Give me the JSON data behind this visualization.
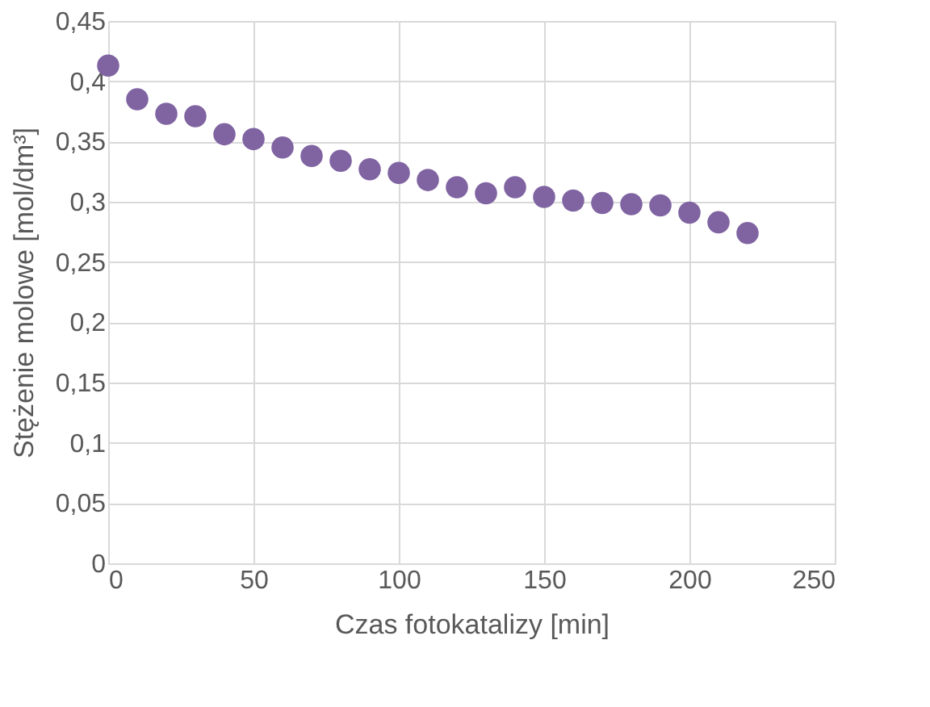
{
  "chart_data": {
    "type": "scatter",
    "xlabel": "Czas fotokatalizy [min]",
    "ylabel": "Stężenie molowe [mol/dm³]",
    "x": [
      0,
      10,
      20,
      30,
      40,
      50,
      60,
      70,
      80,
      90,
      100,
      110,
      120,
      130,
      140,
      150,
      160,
      170,
      180,
      190,
      200,
      210,
      220
    ],
    "series": [
      {
        "color": "#8064a2",
        "values": [
          0.413,
          0.385,
          0.373,
          0.371,
          0.356,
          0.352,
          0.345,
          0.338,
          0.334,
          0.327,
          0.324,
          0.318,
          0.312,
          0.307,
          0.312,
          0.304,
          0.301,
          0.299,
          0.298,
          0.297,
          0.291,
          0.283,
          0.274
        ]
      }
    ],
    "xlim": [
      0,
      250
    ],
    "xticks": [
      0,
      50,
      100,
      150,
      200,
      250
    ],
    "ylim": [
      0,
      0.45
    ],
    "yticks": [
      {
        "value": 0,
        "label": "0"
      },
      {
        "value": 0.05,
        "label": "0,05"
      },
      {
        "value": 0.1,
        "label": "0,1"
      },
      {
        "value": 0.15,
        "label": "0,15"
      },
      {
        "value": 0.2,
        "label": "0,2"
      },
      {
        "value": 0.25,
        "label": "0,25"
      },
      {
        "value": 0.3,
        "label": "0,3"
      },
      {
        "value": 0.35,
        "label": "0,35"
      },
      {
        "value": 0.4,
        "label": "0,4"
      },
      {
        "value": 0.45,
        "label": "0,45"
      }
    ],
    "grid": true,
    "marker": "circle",
    "legend": false
  }
}
